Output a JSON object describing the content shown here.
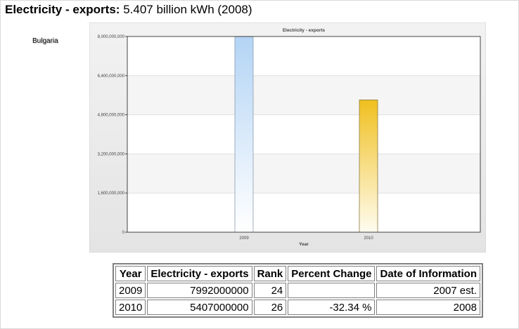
{
  "header": {
    "label": "Electricity - exports:",
    "value": "5.407 billion kWh (2008)"
  },
  "country": "Bulgaria",
  "chart_data": {
    "type": "bar",
    "title": "Electricity - exports",
    "xlabel": "Year",
    "ylabel": "",
    "categories": [
      "2009",
      "2010"
    ],
    "values": [
      7992000000,
      5407000000
    ],
    "ylim": [
      0,
      8000000000
    ],
    "yticks": [
      0,
      1600000000,
      3200000000,
      4800000000,
      6400000000,
      8000000000
    ],
    "ytick_labels": [
      "0",
      "1,600,000,000",
      "3,200,000,000",
      "4,800,000,000",
      "6,400,000,000",
      "8,000,000,000"
    ],
    "grid": true,
    "bar_colors": [
      {
        "top": "#b3d4f5",
        "bottom": "#ffffff",
        "stroke": "#8a9bb0"
      },
      {
        "top": "#f0c020",
        "bottom": "#fffcf0",
        "stroke": "#8a7a40"
      }
    ]
  },
  "table": {
    "headers": [
      "Year",
      "Electricity - exports",
      "Rank",
      "Percent Change",
      "Date of Information"
    ],
    "rows": [
      [
        "2009",
        "7992000000",
        "24",
        "",
        "2007 est."
      ],
      [
        "2010",
        "5407000000",
        "26",
        "-32.34 %",
        "2008"
      ]
    ]
  }
}
